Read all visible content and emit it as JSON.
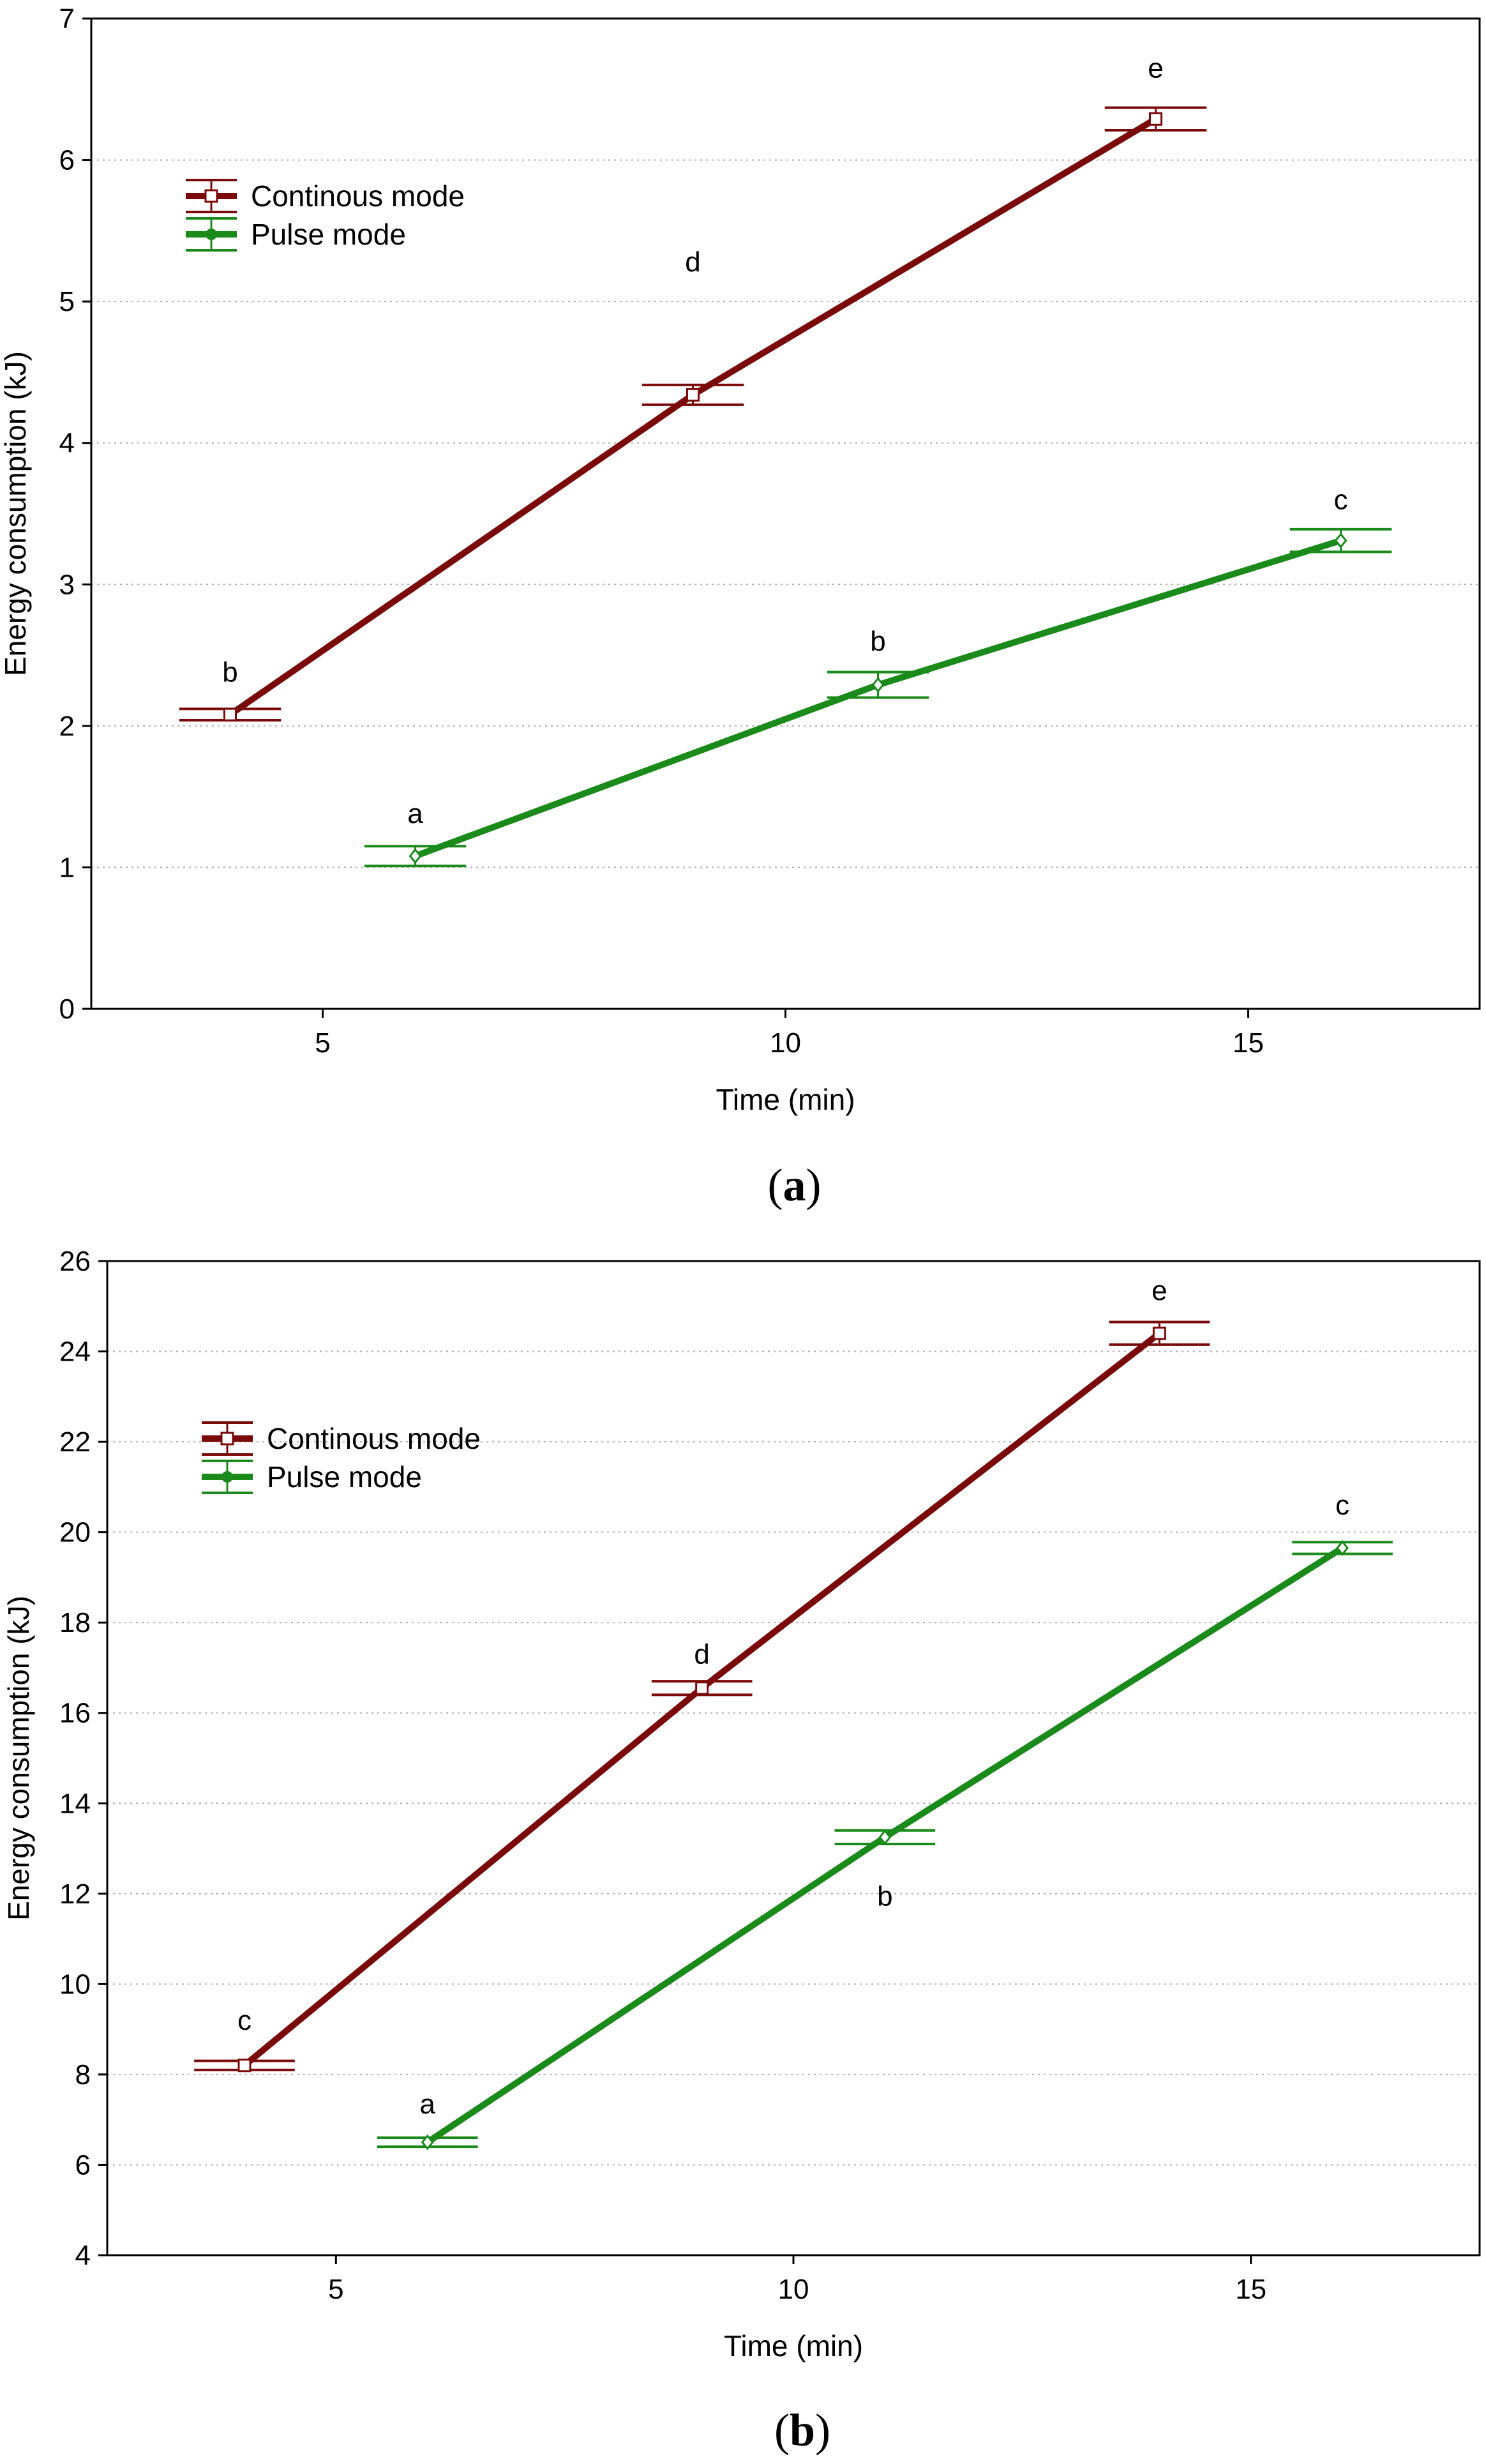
{
  "chart_data": [
    {
      "type": "line",
      "caption": {
        "open": "(",
        "letter": "a",
        "close": ")"
      },
      "xlabel": "Time (min)",
      "ylabel": "Energy consumption (kJ)",
      "xlim": [
        2.5,
        17.5
      ],
      "ylim": [
        0,
        7
      ],
      "xticks": [
        5,
        10,
        15
      ],
      "yticks": [
        0,
        1,
        2,
        3,
        4,
        5,
        6,
        7
      ],
      "grid": "horizontal dotted",
      "legend_position": "top-left",
      "series": [
        {
          "name": "Continous mode",
          "color": "#7a0a0a",
          "marker": "square",
          "x": [
            4,
            9,
            14
          ],
          "y": [
            2.08,
            4.34,
            6.29
          ],
          "err": [
            0.04,
            0.07,
            0.08
          ],
          "err_halfwidth_x": 0.55,
          "labels": [
            "b",
            "d",
            "e"
          ],
          "label_y": [
            2.38,
            5.28,
            6.65
          ]
        },
        {
          "name": "Pulse mode",
          "color": "#1a8a1a",
          "marker": "diamond",
          "x": [
            6,
            11,
            16
          ],
          "y": [
            1.08,
            2.29,
            3.31
          ],
          "err": [
            0.07,
            0.09,
            0.08
          ],
          "err_halfwidth_x": 0.55,
          "labels": [
            "a",
            "b",
            "c"
          ],
          "label_y": [
            1.38,
            2.6,
            3.6
          ]
        }
      ]
    },
    {
      "type": "line",
      "caption": {
        "open": "(",
        "letter": "b",
        "close": ")"
      },
      "xlabel": "Time (min)",
      "ylabel": "Energy consumption (kJ)",
      "xlim": [
        2.5,
        17.5
      ],
      "ylim": [
        4,
        26
      ],
      "xticks": [
        5,
        10,
        15
      ],
      "yticks": [
        4,
        6,
        8,
        10,
        12,
        14,
        16,
        18,
        20,
        22,
        24,
        26
      ],
      "grid": "horizontal dotted",
      "legend_position": "top-left",
      "series": [
        {
          "name": "Continous mode",
          "color": "#7a0a0a",
          "marker": "square",
          "x": [
            4,
            9,
            14
          ],
          "y": [
            8.2,
            16.55,
            24.4
          ],
          "err": [
            0.1,
            0.15,
            0.25
          ],
          "err_halfwidth_x": 0.55,
          "labels": [
            "c",
            "d",
            "e"
          ],
          "label_y": [
            9.2,
            17.3,
            25.35
          ]
        },
        {
          "name": "Pulse mode",
          "color": "#1a8a1a",
          "marker": "diamond",
          "x": [
            6,
            11,
            16
          ],
          "y": [
            6.5,
            13.25,
            19.65
          ],
          "err": [
            0.1,
            0.15,
            0.13
          ],
          "err_halfwidth_x": 0.55,
          "labels": [
            "a",
            "b",
            "c"
          ],
          "label_y": [
            7.35,
            11.95,
            20.6
          ]
        }
      ]
    }
  ]
}
